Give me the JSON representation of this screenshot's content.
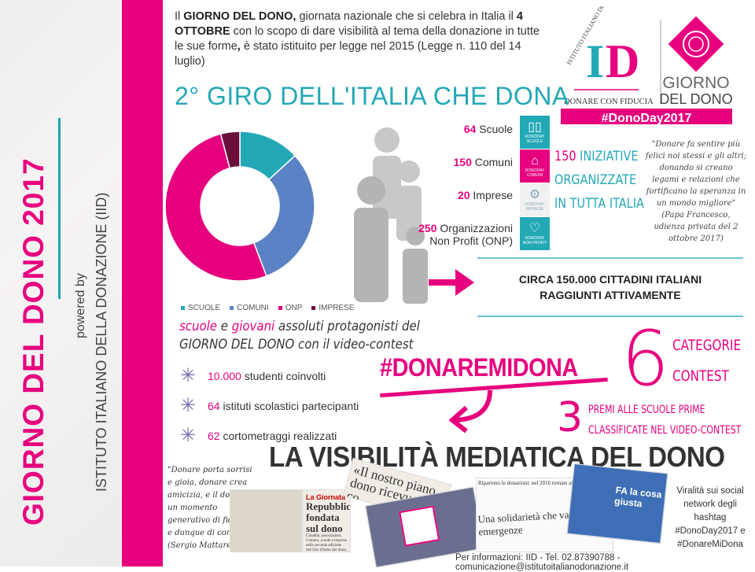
{
  "sidebar": {
    "title": "GIORNO DEL DONO 2017",
    "powered_by": "powered by",
    "institute": "ISTITUTO ITALIANO DELLA DONAZIONE (IID)"
  },
  "colors": {
    "pink": "#e6007e",
    "teal": "#23a8b6",
    "blue": "#5b82c4",
    "dark": "#6b0f3a"
  },
  "intro": {
    "p1": "Il ",
    "b1": "GIORNO DEL DONO,",
    "p2": " giornata nazionale che si celebra in Italia il ",
    "b2": "4 OTTOBRE",
    "p3": " con lo scopo di dare visibilità al tema della donazione in tutte le sue forme",
    "b3": ",",
    "p4": " è stato istituito per legge nel 2015 (Legge n. 110 del 14 luglio)"
  },
  "logo": {
    "arc_text": "ISTITUTO ITALIANO DONAZIONE",
    "letters": "ID",
    "tagline": "DONARE CON FIDUCIA",
    "brand1": "GIORNO",
    "brand2": "DEL DONO",
    "hashtag": "#DonoDay2017"
  },
  "giro": {
    "title": "2° GIRO DELL'ITALIA CHE DONA"
  },
  "chart_data": {
    "type": "pie",
    "donut": true,
    "categories": [
      "SCUOLE",
      "COMUNI",
      "ONP",
      "IMPRESE"
    ],
    "values": [
      64,
      150,
      250,
      20
    ],
    "colors": [
      "#23a8b6",
      "#5b82c4",
      "#e6007e",
      "#6b0f3a"
    ],
    "legend": "bottom"
  },
  "stats": [
    {
      "num": "64",
      "label": " Scuole",
      "tile": "SCUOLE",
      "icon": "book-icon"
    },
    {
      "num": "150",
      "label": " Comuni",
      "tile": "COMUNI",
      "icon": "building-icon"
    },
    {
      "num": "20",
      "label": " Imprese",
      "tile": "IMPRESE",
      "icon": "gears-icon"
    },
    {
      "num": "250",
      "label": " Organizzazioni",
      "label2": "Non Profit (ONP)",
      "tile": "NON PROFIT",
      "icon": "heart-icon"
    }
  ],
  "tile_brand": "DONODAY",
  "iniziative": {
    "num": "150",
    "l1": " INIZIATIVE",
    "l2": "ORGANIZZATE",
    "l3": "IN TUTTA ITALIA"
  },
  "quote_pope": {
    "text": "\"Donare fa sentire più felici noi stessi e gli altri; donando si creano legami e relazioni che fortificano la speranza in un mondo migliore\"",
    "source": "(Papa Francesco, udienza privata del 2 ottobre 2017)"
  },
  "cittadini": {
    "l1": "CIRCA 150.000 CITTADINI ITALIANI",
    "l2": "RAGGIUNTI ATTIVAMENTE"
  },
  "scuole_giovani": {
    "w1": "scuole",
    "w2": " e ",
    "w3": "giovani",
    "w4": " assoluti protagonisti del",
    "l2": "GIORNO DEL DONO con il video-contest"
  },
  "bullets": [
    {
      "num": "10.000",
      "text": " studenti coinvolti"
    },
    {
      "num": "64",
      "text": " istituti scolastici partecipanti"
    },
    {
      "num": "62",
      "text": " cortometraggi realizzati"
    }
  ],
  "contest": {
    "hashtag": "#DONAREMIDONA",
    "six": "6",
    "cat1": "CATEGORIE",
    "cat2": "CONTEST",
    "three": "3",
    "premi1": "PREMI ALLE SCUOLE PRIME",
    "premi2": "CLASSIFICATE NEL VIDEO-CONTEST"
  },
  "media": {
    "title": "LA VISIBILITÀ MEDIATICA DEL DONO",
    "quote": "\"Donare porta sorrisi e gioia, donare crea amicizia, e il dono è un momento generativo di fiducia, e dunque di comunità\"",
    "source": "(Sergio Mattarella)",
    "clip1_tag": "La Giornata",
    "clip1_head": "Repubblica fondata sul dono",
    "clip1_body": "Cittadini, associazioni, Comuni, scuole e imprese nella seconda edizione del Giro d'Italia che dona, mercoledì.",
    "clip2_head": "«Il nostro piano dono ricevu da co",
    "clip3_top": "Ripartono le donazioni: nel 2016 tornate ai livelli pre-crisi",
    "clip3_head": "Una solidarietà che va oltre le emergenze",
    "clip4_tv": "FA la cosa giusta",
    "viral": "Viralità sui social network degli hashtag #DonoDay2017 e #DonareMiDona"
  },
  "footer": "Per informazioni: IID - Tel. 02.87390788 - comunicazione@istitutoitalianodonazione.it"
}
